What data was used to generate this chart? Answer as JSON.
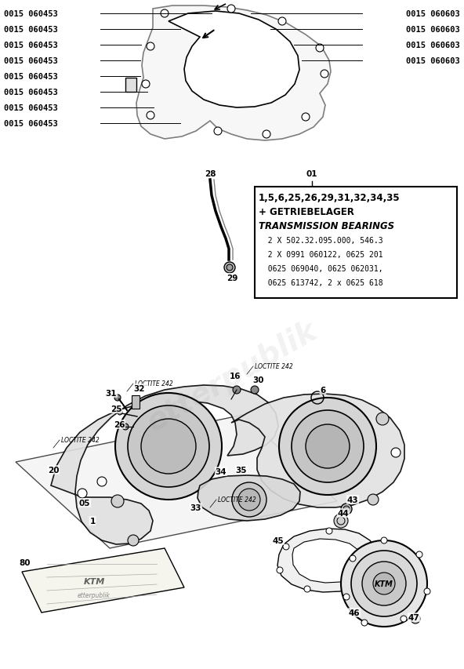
{
  "bg_color": "#ffffff",
  "fig_width": 5.92,
  "fig_height": 8.54,
  "dpi": 100,
  "left_labels": [
    "0015 060453",
    "0015 060453",
    "0015 060453",
    "0015 060453",
    "0015 060453",
    "0015 060453",
    "0015 060453",
    "0015 060453"
  ],
  "right_labels": [
    "0015 060603",
    "0015 060603",
    "0015 060603",
    "0015 060603"
  ],
  "info_box_title_line1": "1,5,6,25,26,29,31,32,34,35",
  "info_box_title_line2": "+ GETRIEBELAGER",
  "info_box_title_line3": "TRANSMISSION BEARINGS",
  "info_box_lines": [
    "  2 X 502.32.095.000, 546.3",
    "  2 X 0991 060122, 0625 201",
    "  0625 069040, 0625 062031,",
    "  0625 613742, 2 x 0625 618"
  ],
  "info_box_label": "01",
  "watermark": "etterpublik"
}
